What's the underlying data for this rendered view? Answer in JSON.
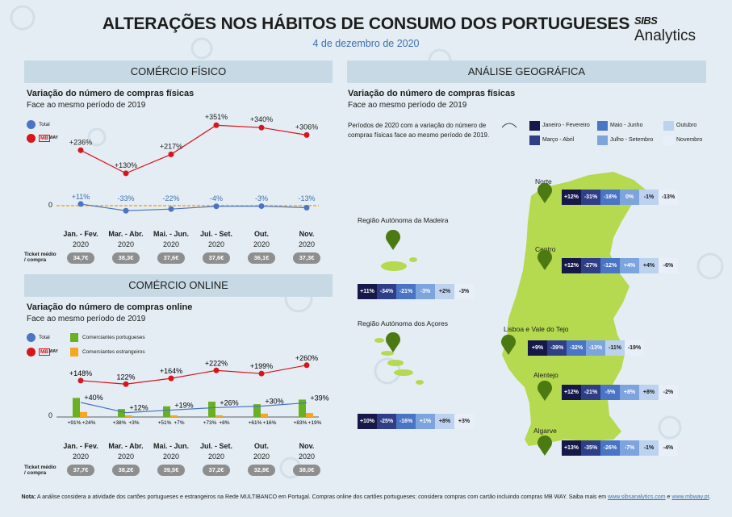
{
  "header": {
    "title": "ALTERAÇÕES NOS HÁBITOS DE CONSUMO DOS PORTUGUESES",
    "date": "4 de dezembro de 2020",
    "logo_top": "SIBS",
    "logo_bottom": "Analytics"
  },
  "colors": {
    "total": "#4a74c4",
    "mbway": "#d7151b",
    "portuguese": "#6ab023",
    "foreign": "#f5a623",
    "map": "#b5d94f",
    "pin": "#4b7a12",
    "band": "#c8d9e6",
    "c1": "#17184a",
    "c2": "#2f3f87",
    "c3": "#4a74c4",
    "c4": "#7ea4de",
    "c5": "#bcd2ef",
    "c6": "#e8eff8"
  },
  "fisico": {
    "section": "COMÉRCIO FÍSICO",
    "subtitle": "Variação do número de compras físicas",
    "subtitle2": "Face ao mesmo período de 2019",
    "legend_total": "Total",
    "legend_mbway_logo": "MB",
    "legend_mbway_suffix": "WAY",
    "zero": "0",
    "ticket_label": "Ticket médio / compra",
    "chart_data": {
      "type": "line",
      "categories": [
        "Jan. - Fev.",
        "Mar. - Abr.",
        "Mai. - Jun.",
        "Jul. - Set.",
        "Out.",
        "Nov."
      ],
      "year": "2020",
      "series": [
        {
          "name": "MB WAY",
          "values": [
            236,
            130,
            217,
            351,
            340,
            306
          ],
          "labels": [
            "+236%",
            "+130%",
            "+217%",
            "+351%",
            "+340%",
            "+306%"
          ]
        },
        {
          "name": "Total",
          "values": [
            11,
            -33,
            -22,
            -4,
            -3,
            -13
          ],
          "labels": [
            "+11%",
            "-33%",
            "-22%",
            "-4%",
            "-3%",
            "-13%"
          ]
        }
      ],
      "ticket": [
        "34,7€",
        "38,3€",
        "37,6€",
        "37,6€",
        "36,1€",
        "37,3€"
      ]
    }
  },
  "online": {
    "section": "COMÉRCIO ONLINE",
    "subtitle": "Variação do número de compras online",
    "subtitle2": "Face ao mesmo período de 2019",
    "legend_total": "Total",
    "legend_mbway_logo": "MB",
    "legend_mbway_suffix": "WAY",
    "legend_pt": "Comerciantes portugueses",
    "legend_foreign": "Comerciantes estrangeiros",
    "zero": "0",
    "ticket_label": "Ticket médio / compra",
    "chart_data": {
      "type": "line+bar",
      "categories": [
        "Jan. - Fev.",
        "Mar. - Abr.",
        "Mai. - Jun.",
        "Jul. - Set.",
        "Out.",
        "Nov."
      ],
      "year": "2020",
      "series": [
        {
          "name": "MB WAY",
          "values": [
            148,
            122,
            164,
            222,
            199,
            260
          ],
          "labels": [
            "+148%",
            "122%",
            "+164%",
            "+222%",
            "+199%",
            "+260%"
          ]
        },
        {
          "name": "Total",
          "values": [
            40,
            12,
            19,
            26,
            30,
            39
          ],
          "labels": [
            "+40%",
            "+12%",
            "+19%",
            "+26%",
            "+30%",
            "+39%"
          ]
        },
        {
          "name": "Comerciantes portugueses",
          "values": [
            91,
            38,
            51,
            73,
            61,
            83
          ],
          "labels": [
            "+91%",
            "+38%",
            "+51%",
            "+73%",
            "+61%",
            "+83%"
          ]
        },
        {
          "name": "Comerciantes estrangeiros",
          "values": [
            24,
            3,
            7,
            8,
            16,
            19
          ],
          "labels": [
            "+24%",
            "+3%",
            "+7%",
            "+8%",
            "+16%",
            "+19%"
          ]
        }
      ],
      "ticket": [
        "37,7€",
        "38,2€",
        "39,5€",
        "37,2€",
        "32,8€",
        "38,0€"
      ]
    }
  },
  "geo": {
    "section": "ANÁLISE GEOGRÁFICA",
    "subtitle": "Variação do número de compras físicas",
    "subtitle2": "Face ao mesmo período de 2019",
    "periods_text": "Períodos de 2020 com a variação do número de compras físicas face ao mesmo período de 2019.",
    "legend": [
      "Janeiro - Fevereiro",
      "Março - Abril",
      "Maio - Junho",
      "Julho - Setembro",
      "Outubro",
      "Novembro"
    ],
    "regions": [
      {
        "name": "Norte",
        "values": [
          "+12%",
          "-31%",
          "-18%",
          "0%",
          "-1%",
          "-13%"
        ]
      },
      {
        "name": "Centro",
        "values": [
          "+12%",
          "-27%",
          "-12%",
          "+4%",
          "+4%",
          "-6%"
        ]
      },
      {
        "name": "Lisboa e Vale do Tejo",
        "values": [
          "+9%",
          "-39%",
          "-32%",
          "-13%",
          "-11%",
          "-19%"
        ]
      },
      {
        "name": "Alentejo",
        "values": [
          "+12%",
          "-21%",
          "-5%",
          "+8%",
          "+8%",
          "-2%"
        ]
      },
      {
        "name": "Algarve",
        "values": [
          "+13%",
          "-35%",
          "-26%",
          "-7%",
          "-1%",
          "-4%"
        ]
      },
      {
        "name": "Região Autónoma da Madeira",
        "values": [
          "+11%",
          "-34%",
          "-21%",
          "-3%",
          "+2%",
          "-3%"
        ]
      },
      {
        "name": "Região Autónoma dos Açores",
        "values": [
          "+10%",
          "-25%",
          "-16%",
          "+1%",
          "+8%",
          "+3%"
        ]
      }
    ]
  },
  "note": {
    "bold": "Nota:",
    "text": " A análise considera a atividade dos cartões portugueses e estrangeiros na Rede MULTIBANCO em Portugal. Compras online dos cartões portugueses: considera compras com cartão incluindo compras MB WAY. Saiba mais em ",
    "link1": "www.sibsanalytics.com",
    "and": " e ",
    "link2": "www.mbway.pt",
    "end": "."
  }
}
